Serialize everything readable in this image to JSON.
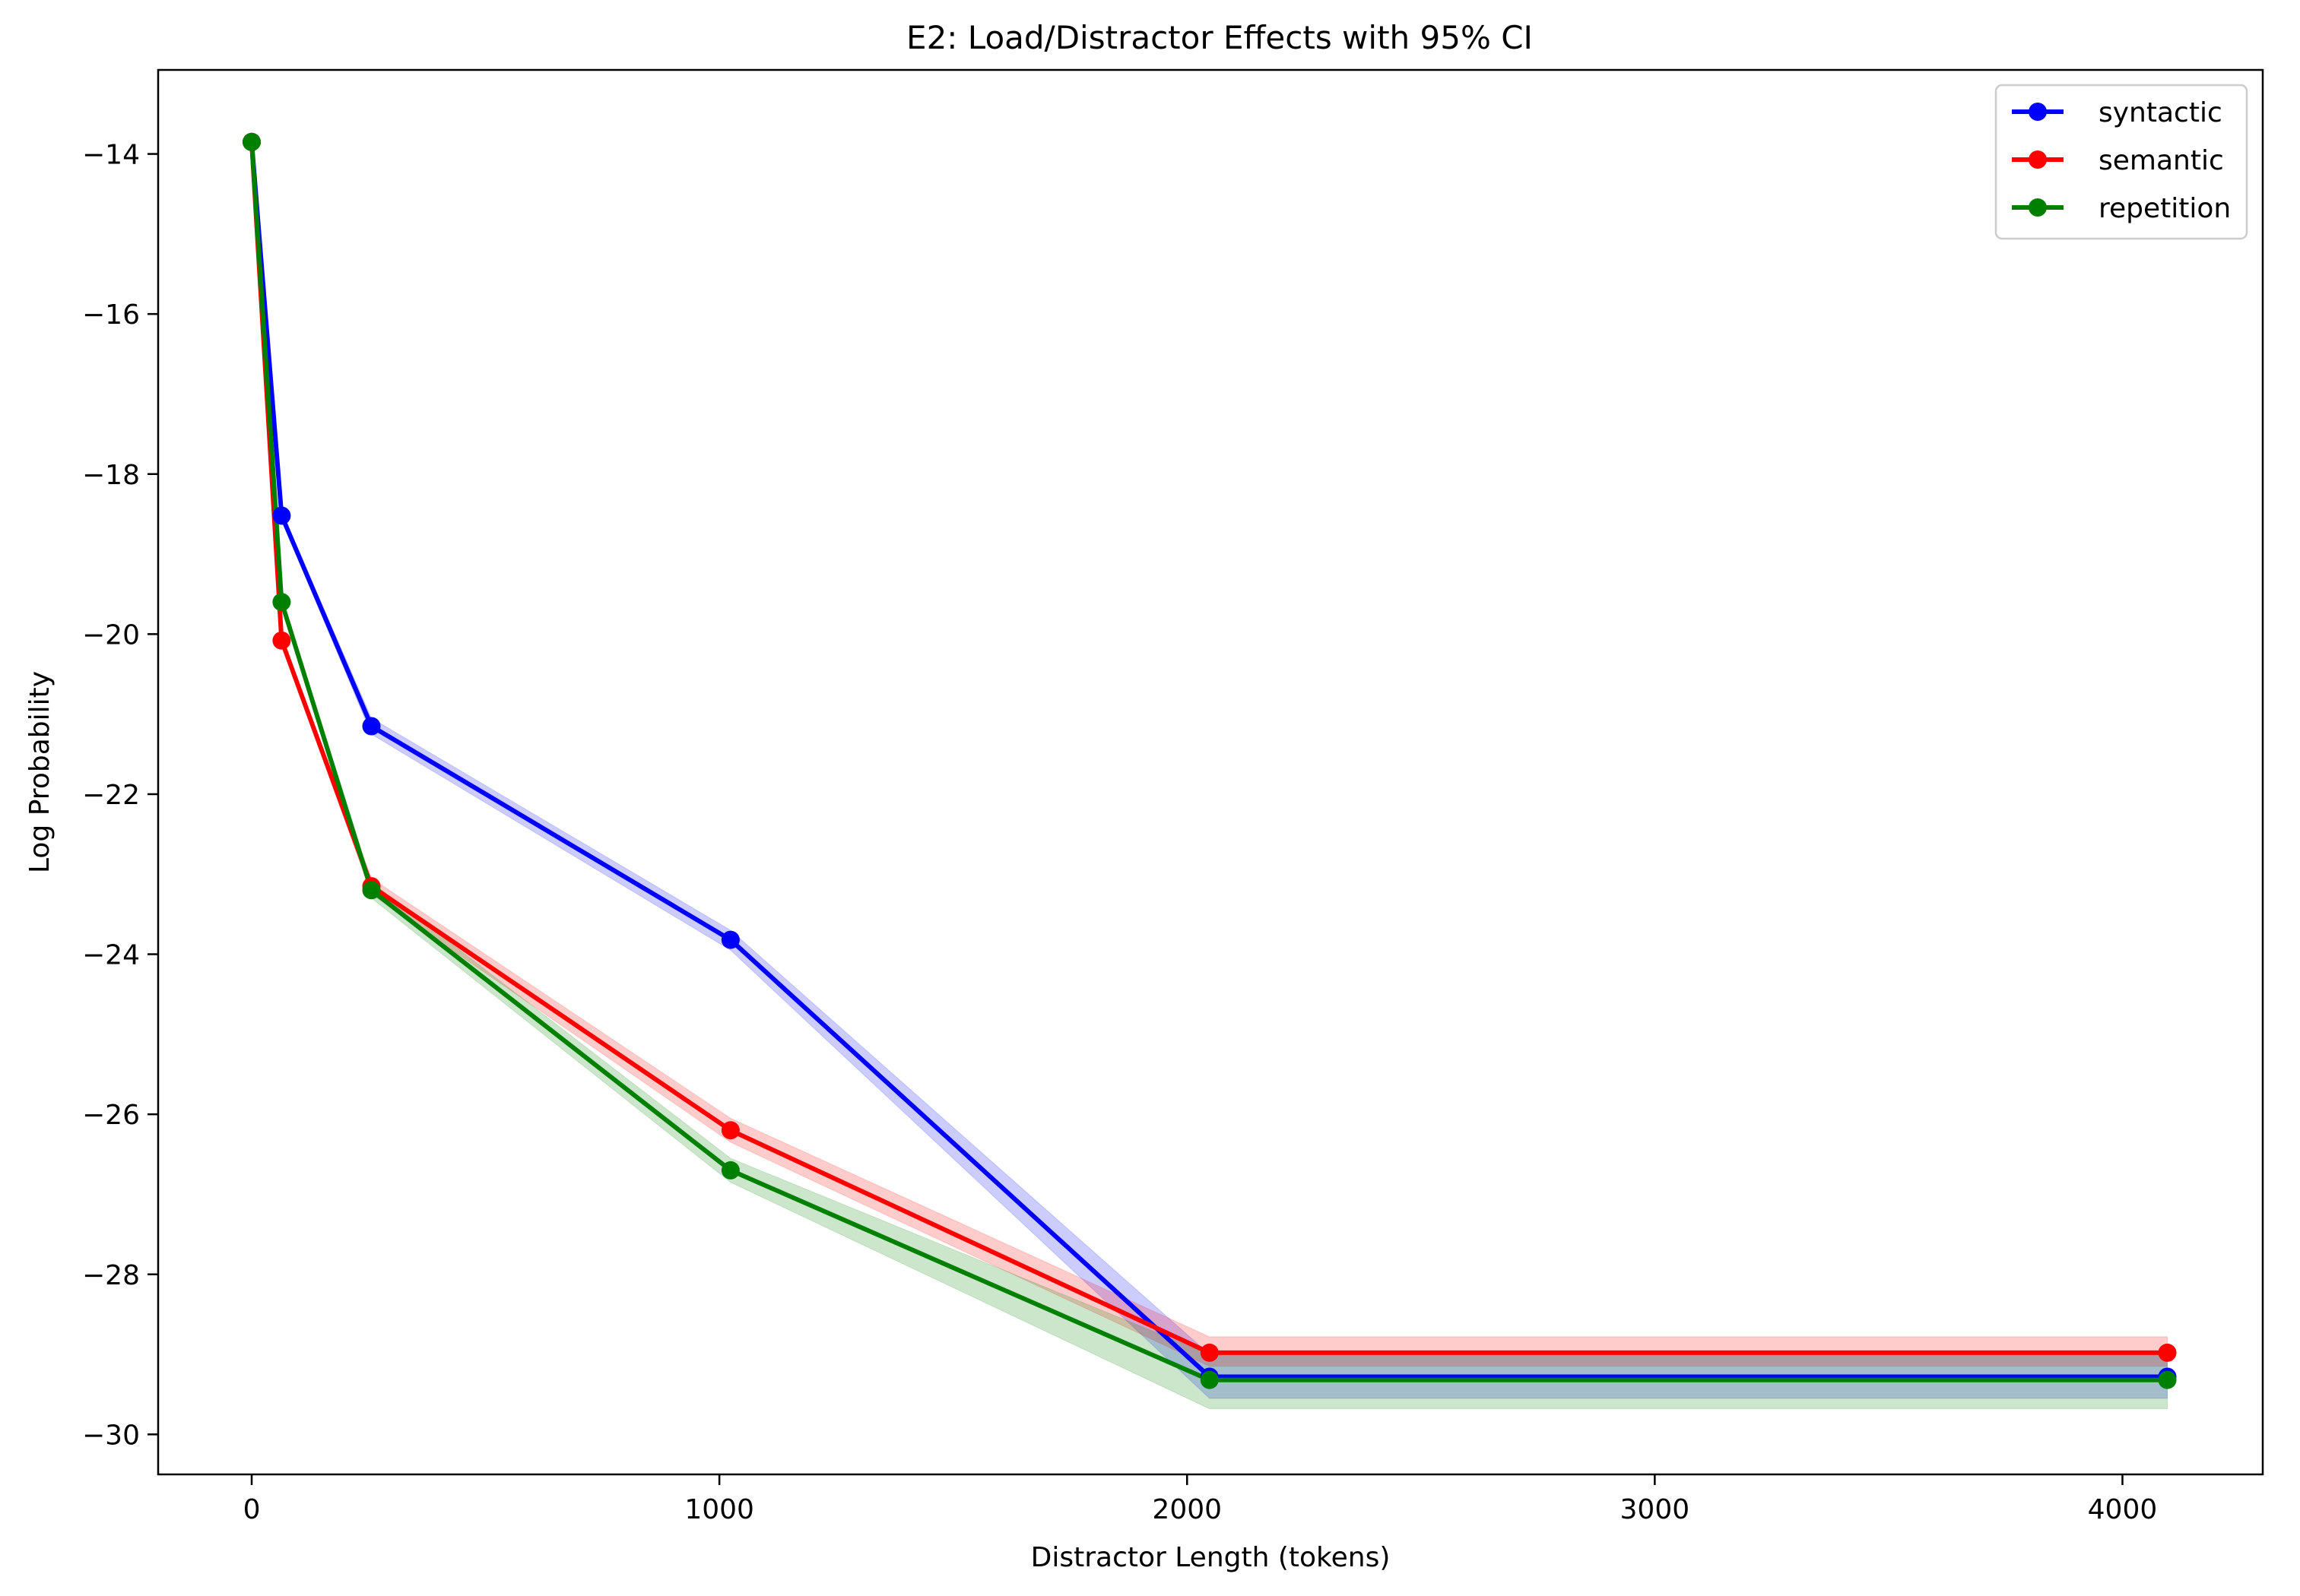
{
  "chart_data": {
    "type": "line",
    "title": "E2: Load/Distractor Effects with 95% CI",
    "xlabel": "Distractor Length (tokens)",
    "ylabel": "Log Probability",
    "xlim": [
      -200,
      4300
    ],
    "ylim": [
      -30.5,
      -12.95
    ],
    "xticks": [
      0,
      1000,
      2000,
      3000,
      4000
    ],
    "xtick_labels": [
      "0",
      "1000",
      "2000",
      "3000",
      "4000"
    ],
    "yticks": [
      -30,
      -28,
      -26,
      -24,
      -22,
      -20,
      -18,
      -16,
      -14
    ],
    "ytick_labels": [
      "−30",
      "−28",
      "−26",
      "−24",
      "−22",
      "−20",
      "−18",
      "−16",
      "−14"
    ],
    "grid": false,
    "legend_position": "top-right",
    "x": [
      0,
      64,
      256,
      1024,
      2048,
      4096
    ],
    "series": [
      {
        "name": "syntactic",
        "color": "#0000ff",
        "values": [
          -13.85,
          -18.52,
          -21.15,
          -23.82,
          -29.28,
          -29.28
        ],
        "ci_low": [
          -13.87,
          -18.57,
          -21.25,
          -23.95,
          -29.55,
          -29.55
        ],
        "ci_high": [
          -13.83,
          -18.47,
          -21.05,
          -23.7,
          -29.0,
          -29.0
        ]
      },
      {
        "name": "semantic",
        "color": "#ff0000",
        "values": [
          -13.85,
          -20.08,
          -23.15,
          -26.2,
          -28.98,
          -28.98
        ],
        "ci_low": [
          -13.87,
          -20.13,
          -23.25,
          -26.35,
          -29.15,
          -29.15
        ],
        "ci_high": [
          -13.83,
          -20.03,
          -23.05,
          -26.05,
          -28.78,
          -28.78
        ]
      },
      {
        "name": "repetition",
        "color": "#008000",
        "values": [
          -13.85,
          -19.6,
          -23.2,
          -26.7,
          -29.32,
          -29.32
        ],
        "ci_low": [
          -13.87,
          -19.65,
          -23.3,
          -26.85,
          -29.68,
          -29.68
        ],
        "ci_high": [
          -13.83,
          -19.55,
          -23.1,
          -26.55,
          -29.0,
          -29.0
        ]
      }
    ]
  }
}
